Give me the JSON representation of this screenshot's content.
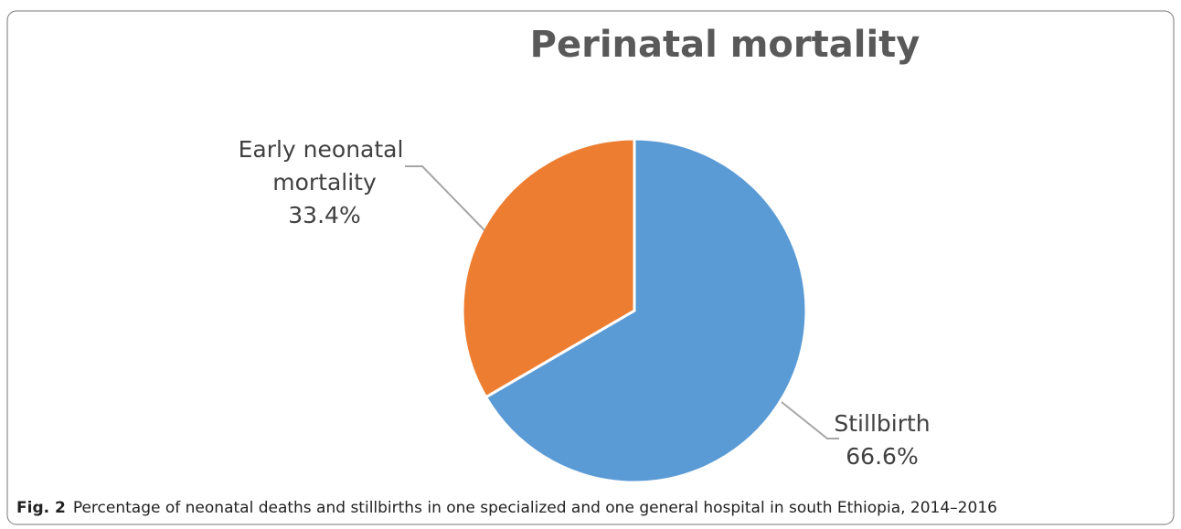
{
  "chart_data": {
    "type": "pie",
    "title": "Perinatal mortality",
    "categories": [
      "Stillbirth",
      "Early neonatal mortality"
    ],
    "values": [
      66.6,
      33.4
    ],
    "value_labels": [
      "66.6%",
      "33.4%"
    ],
    "colors": [
      "#5b9bd5",
      "#ed7d31"
    ]
  },
  "figure_caption": {
    "label": "Fig. 2",
    "text": "Percentage of neonatal deaths and stillbirths in one specialized and one general hospital in south Ethiopia, 2014–2016"
  }
}
